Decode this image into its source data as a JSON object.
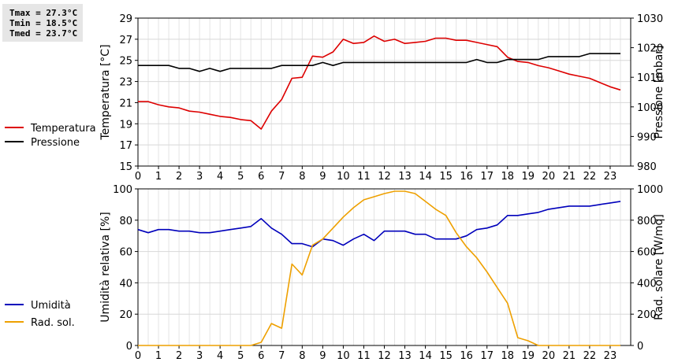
{
  "stats": {
    "tmax": "Tmax = 27.3°C",
    "tmin": "Tmin = 18.5°C",
    "tmed": "Tmed = 23.7°C"
  },
  "chart_data": [
    {
      "type": "line",
      "title": "",
      "xlabel": "",
      "ylabel": "Temperatura [°C]",
      "ylabel_right": "Pressione [mbar]",
      "xlim": [
        0,
        24
      ],
      "xticks": [
        "0",
        "1",
        "2",
        "3",
        "4",
        "5",
        "6",
        "7",
        "8",
        "9",
        "10",
        "11",
        "12",
        "13",
        "14",
        "15",
        "16",
        "17",
        "18",
        "19",
        "20",
        "21",
        "22",
        "23"
      ],
      "ylim": [
        15,
        29
      ],
      "yticks": [
        "15",
        "17",
        "19",
        "21",
        "23",
        "25",
        "27",
        "29"
      ],
      "ylim_right": [
        980,
        1030
      ],
      "yticks_right": [
        "980",
        "990",
        "1000",
        "1010",
        "1020",
        "1030"
      ],
      "grid": true,
      "legend_position": "left",
      "series": [
        {
          "name": "Temperatura",
          "axis": "left",
          "color": "#dd0000",
          "x": [
            0,
            0.5,
            1,
            1.5,
            2,
            2.5,
            3,
            3.5,
            4,
            4.5,
            5,
            5.5,
            6,
            6.5,
            7,
            7.5,
            8,
            8.5,
            9,
            9.5,
            10,
            10.5,
            11,
            11.5,
            12,
            12.5,
            13,
            13.5,
            14,
            14.5,
            15,
            15.5,
            16,
            16.5,
            17,
            17.5,
            18,
            18.5,
            19,
            19.5,
            20,
            20.5,
            21,
            21.5,
            22,
            22.5,
            23,
            23.5
          ],
          "y": [
            21.1,
            21.1,
            20.8,
            20.6,
            20.5,
            20.2,
            20.1,
            19.9,
            19.7,
            19.6,
            19.4,
            19.3,
            18.5,
            20.2,
            21.3,
            23.3,
            23.4,
            25.4,
            25.3,
            25.8,
            27.0,
            26.6,
            26.7,
            27.3,
            26.8,
            27.0,
            26.6,
            26.7,
            26.8,
            27.1,
            27.1,
            26.9,
            26.9,
            26.7,
            26.5,
            26.3,
            25.3,
            24.9,
            24.8,
            24.5,
            24.3,
            24.0,
            23.7,
            23.5,
            23.3,
            22.9,
            22.5,
            22.2
          ]
        },
        {
          "name": "Pressione",
          "axis": "right",
          "color": "#000000",
          "x": [
            0,
            0.5,
            1,
            1.5,
            2,
            2.5,
            3,
            3.5,
            4,
            4.5,
            5,
            5.5,
            6,
            6.5,
            7,
            7.5,
            8,
            8.5,
            9,
            9.5,
            10,
            10.5,
            11,
            11.5,
            12,
            12.5,
            13,
            13.5,
            14,
            14.5,
            15,
            15.5,
            16,
            16.5,
            17,
            17.5,
            18,
            18.5,
            19,
            19.5,
            20,
            20.5,
            21,
            21.5,
            22,
            22.5,
            23,
            23.5
          ],
          "y": [
            1014,
            1014,
            1014,
            1014,
            1013,
            1013,
            1012,
            1013,
            1012,
            1013,
            1013,
            1013,
            1013,
            1013,
            1014,
            1014,
            1014,
            1014,
            1015,
            1014,
            1015,
            1015,
            1015,
            1015,
            1015,
            1015,
            1015,
            1015,
            1015,
            1015,
            1015,
            1015,
            1015,
            1016,
            1015,
            1015,
            1016,
            1016,
            1016,
            1016,
            1017,
            1017,
            1017,
            1017,
            1018,
            1018,
            1018,
            1018
          ]
        }
      ]
    },
    {
      "type": "line",
      "title": "",
      "xlabel": "",
      "ylabel": "Umidità relativa [%]",
      "ylabel_right": "Rad. solare [W/mq]",
      "xlim": [
        0,
        24
      ],
      "xticks": [
        "0",
        "1",
        "2",
        "3",
        "4",
        "5",
        "6",
        "7",
        "8",
        "9",
        "10",
        "11",
        "12",
        "13",
        "14",
        "15",
        "16",
        "17",
        "18",
        "19",
        "20",
        "21",
        "22",
        "23"
      ],
      "ylim": [
        0,
        100
      ],
      "yticks": [
        "0",
        "20",
        "40",
        "60",
        "80",
        "100"
      ],
      "ylim_right": [
        0,
        1000
      ],
      "yticks_right": [
        "0",
        "200",
        "400",
        "600",
        "800",
        "1000"
      ],
      "grid": true,
      "legend_position": "left",
      "series": [
        {
          "name": "Umidità",
          "axis": "left",
          "color": "#0000bb",
          "x": [
            0,
            0.5,
            1,
            1.5,
            2,
            2.5,
            3,
            3.5,
            4,
            4.5,
            5,
            5.5,
            6,
            6.5,
            7,
            7.5,
            8,
            8.5,
            9,
            9.5,
            10,
            10.5,
            11,
            11.5,
            12,
            12.5,
            13,
            13.5,
            14,
            14.5,
            15,
            15.5,
            16,
            16.5,
            17,
            17.5,
            18,
            18.5,
            19,
            19.5,
            20,
            20.5,
            21,
            21.5,
            22,
            22.5,
            23,
            23.5
          ],
          "y": [
            74,
            72,
            74,
            74,
            73,
            73,
            72,
            72,
            73,
            74,
            75,
            76,
            81,
            75,
            71,
            65,
            65,
            63,
            68,
            67,
            64,
            68,
            71,
            67,
            73,
            73,
            73,
            71,
            71,
            68,
            68,
            68,
            70,
            74,
            75,
            77,
            83,
            83,
            84,
            85,
            87,
            88,
            89,
            89,
            89,
            90,
            91,
            92
          ]
        },
        {
          "name": "Rad. sol.",
          "axis": "right",
          "color": "#eea000",
          "x": [
            0,
            0.5,
            1,
            1.5,
            2,
            2.5,
            3,
            3.5,
            4,
            4.5,
            5,
            5.5,
            6,
            6.5,
            7,
            7.5,
            8,
            8.5,
            9,
            9.5,
            10,
            10.5,
            11,
            11.5,
            12,
            12.5,
            13,
            13.5,
            14,
            14.5,
            15,
            15.5,
            16,
            16.5,
            17,
            17.5,
            18,
            18.5,
            19,
            19.5,
            20,
            20.5,
            21,
            21.5,
            22,
            22.5,
            23,
            23.5
          ],
          "y": [
            0,
            0,
            0,
            0,
            0,
            0,
            0,
            0,
            0,
            0,
            0,
            0,
            20,
            140,
            110,
            520,
            450,
            640,
            680,
            750,
            820,
            880,
            930,
            950,
            970,
            985,
            985,
            970,
            920,
            870,
            830,
            720,
            630,
            560,
            470,
            370,
            270,
            50,
            30,
            0,
            0,
            0,
            0,
            0,
            0,
            0,
            0,
            0
          ]
        }
      ]
    }
  ]
}
